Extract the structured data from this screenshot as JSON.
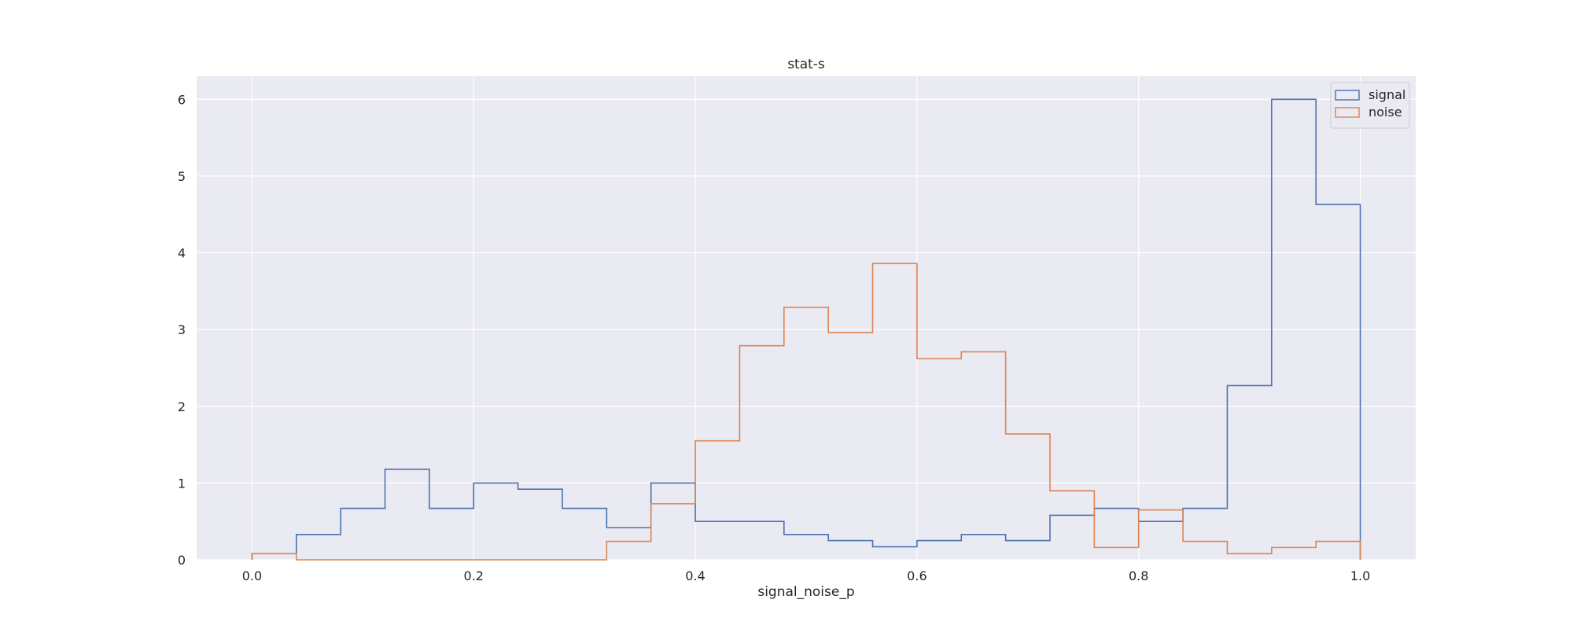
{
  "chart_data": {
    "type": "histogram-step",
    "title": "stat-s",
    "xlabel": "signal_noise_p",
    "ylabel": "",
    "xlim": [
      -0.05,
      1.05
    ],
    "ylim": [
      0,
      6.3
    ],
    "x_ticks": [
      0.0,
      0.2,
      0.4,
      0.6,
      0.8,
      1.0
    ],
    "x_tick_labels": [
      "0.0",
      "0.2",
      "0.4",
      "0.6",
      "0.8",
      "1.0"
    ],
    "y_ticks": [
      0,
      1,
      2,
      3,
      4,
      5,
      6
    ],
    "y_tick_labels": [
      "0",
      "1",
      "2",
      "3",
      "4",
      "5",
      "6"
    ],
    "grid": true,
    "legend_position": "top-right",
    "bin_edges": [
      0.0,
      0.04,
      0.08,
      0.12,
      0.16,
      0.2,
      0.24,
      0.28,
      0.32,
      0.36,
      0.4,
      0.44,
      0.48,
      0.52,
      0.56,
      0.6,
      0.64,
      0.68,
      0.72,
      0.76,
      0.8,
      0.84,
      0.88,
      0.92,
      0.96,
      1.0
    ],
    "series": [
      {
        "name": "signal",
        "color": "#4c72b0",
        "values": [
          0.08,
          0.33,
          0.67,
          1.18,
          0.67,
          1.0,
          0.92,
          0.67,
          0.42,
          1.0,
          0.5,
          0.5,
          0.33,
          0.25,
          0.17,
          0.25,
          0.33,
          0.25,
          0.58,
          0.67,
          0.5,
          0.67,
          2.27,
          6.0,
          4.63
        ]
      },
      {
        "name": "noise",
        "color": "#dd8452",
        "values": [
          0.08,
          0.0,
          0.0,
          0.0,
          0.0,
          0.0,
          0.0,
          0.0,
          0.24,
          0.73,
          1.55,
          2.79,
          3.29,
          2.96,
          3.86,
          2.62,
          2.71,
          1.64,
          0.9,
          0.16,
          0.65,
          0.24,
          0.08,
          0.16,
          0.24
        ]
      }
    ]
  },
  "colors": {
    "plot_background": "#eaeaf2",
    "grid": "#ffffff",
    "legend_background": "#eaeaf2",
    "legend_border": "#cccccc"
  }
}
